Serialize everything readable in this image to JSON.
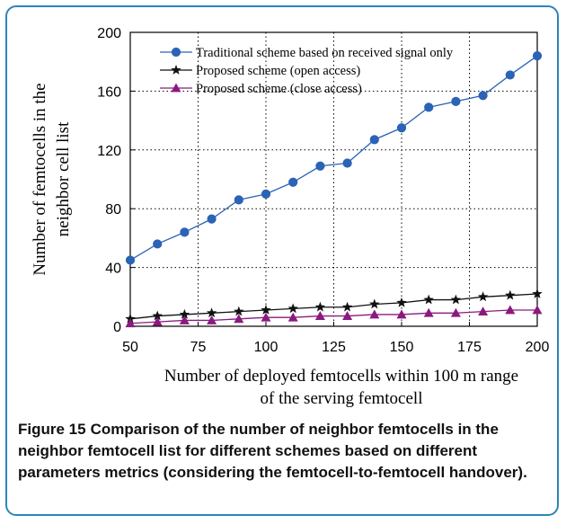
{
  "figure": {
    "caption_label": "Figure 15",
    "caption_text": "Comparison of the number of neighbor femtocells in the neighbor femtocell list for different schemes based on different parameters metrics (considering the femtocell-to-femtocell handover)."
  },
  "chart_data": {
    "type": "line",
    "xlabel_line1": "Number of deployed femtocells within 100 m range",
    "xlabel_line2": "of the  serving femtocell",
    "ylabel_line1": "Number of  femtocells in the",
    "ylabel_line2": "neighbor  cell list",
    "xlim": [
      50,
      200
    ],
    "ylim": [
      0,
      200
    ],
    "x_ticks": [
      50,
      75,
      100,
      125,
      150,
      175,
      200
    ],
    "y_ticks": [
      0,
      40,
      80,
      120,
      160,
      200
    ],
    "x": [
      50,
      60,
      70,
      80,
      90,
      100,
      110,
      120,
      130,
      140,
      150,
      160,
      170,
      180,
      190,
      200
    ],
    "grid": true,
    "legend_position": "top-left",
    "series": [
      {
        "name": "Traditional scheme based on received signal only",
        "marker": "circle",
        "color": "#2b63b5",
        "values": [
          45,
          56,
          64,
          73,
          86,
          90,
          98,
          109,
          111,
          127,
          135,
          149,
          153,
          157,
          171,
          184
        ]
      },
      {
        "name": "Proposed scheme (open access)",
        "marker": "star",
        "color": "#111111",
        "values": [
          5,
          7,
          8,
          9,
          10,
          11,
          12,
          13,
          13,
          15,
          16,
          18,
          18,
          20,
          21,
          22
        ]
      },
      {
        "name": "Proposed scheme (close access)",
        "marker": "triangle",
        "color": "#8b1a7e",
        "values": [
          2,
          3,
          4,
          4,
          5,
          6,
          6,
          7,
          7,
          8,
          8,
          9,
          9,
          10,
          11,
          11
        ]
      }
    ]
  }
}
